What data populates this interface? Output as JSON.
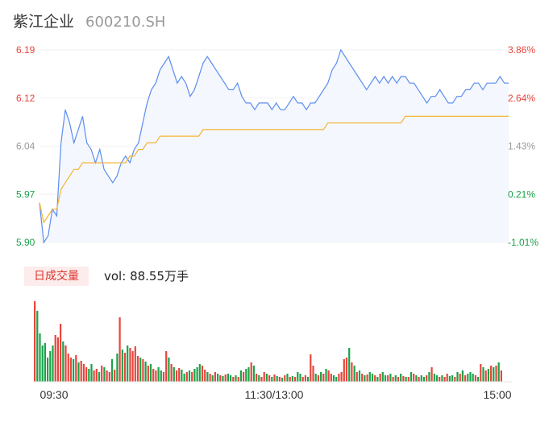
{
  "header": {
    "name": "紫江企业",
    "code": "600210.SH"
  },
  "volume_panel": {
    "label": "日成交量",
    "vol_prefix": "vol:",
    "vol_value": "88.55万手"
  },
  "colors": {
    "price_line": "#5b8def",
    "avg_line": "#f5b335",
    "area_fill": "#f4f7fd",
    "up": "#e8453c",
    "down": "#1aa34a",
    "axis_neutral": "#999999"
  },
  "chart_data": [
    {
      "type": "line",
      "title": "",
      "x_ticks": [
        "09:30",
        "11:30/13:00",
        "15:00"
      ],
      "y_ticks_left": [
        "6.19",
        "6.12",
        "6.04",
        "5.97",
        "5.90"
      ],
      "y_ticks_right": [
        "3.86%",
        "2.64%",
        "1.43%",
        "0.21%",
        "-1.01%"
      ],
      "ylim": [
        5.9,
        6.19
      ],
      "series": [
        {
          "values": [
            5.96,
            5.9,
            5.91,
            5.95,
            5.94,
            6.05,
            6.1,
            6.08,
            6.05,
            6.07,
            6.09,
            6.05,
            6.04,
            6.02,
            6.04,
            6.01,
            6.0,
            5.99,
            6.0,
            6.02,
            6.03,
            6.02,
            6.04,
            6.05,
            6.08,
            6.11,
            6.13,
            6.14,
            6.16,
            6.17,
            6.18,
            6.16,
            6.14,
            6.15,
            6.14,
            6.12,
            6.13,
            6.15,
            6.17,
            6.18,
            6.17,
            6.16,
            6.15,
            6.14,
            6.13,
            6.13,
            6.14,
            6.12,
            6.11,
            6.11,
            6.1,
            6.11,
            6.11,
            6.11,
            6.1,
            6.11,
            6.1,
            6.1,
            6.11,
            6.12,
            6.11,
            6.11,
            6.1,
            6.11,
            6.11,
            6.12,
            6.13,
            6.14,
            6.16,
            6.17,
            6.19,
            6.18,
            6.17,
            6.16,
            6.15,
            6.14,
            6.13,
            6.14,
            6.15,
            6.14,
            6.15,
            6.14,
            6.15,
            6.14,
            6.15,
            6.15,
            6.14,
            6.14,
            6.13,
            6.12,
            6.11,
            6.12,
            6.12,
            6.13,
            6.12,
            6.11,
            6.11,
            6.12,
            6.12,
            6.13,
            6.13,
            6.14,
            6.14,
            6.13,
            6.14,
            6.14,
            6.14,
            6.15,
            6.14,
            6.14
          ]
        },
        {
          "values": [
            5.96,
            5.93,
            5.94,
            5.95,
            5.95,
            5.98,
            5.99,
            6.0,
            6.01,
            6.01,
            6.02,
            6.02,
            6.02,
            6.02,
            6.02,
            6.02,
            6.02,
            6.02,
            6.02,
            6.02,
            6.02,
            6.03,
            6.03,
            6.04,
            6.04,
            6.05,
            6.05,
            6.05,
            6.06,
            6.06,
            6.06,
            6.06,
            6.06,
            6.06,
            6.06,
            6.06,
            6.06,
            6.06,
            6.07,
            6.07,
            6.07,
            6.07,
            6.07,
            6.07,
            6.07,
            6.07,
            6.07,
            6.07,
            6.07,
            6.07,
            6.07,
            6.07,
            6.07,
            6.07,
            6.07,
            6.07,
            6.07,
            6.07,
            6.07,
            6.07,
            6.07,
            6.07,
            6.07,
            6.07,
            6.07,
            6.07,
            6.07,
            6.08,
            6.08,
            6.08,
            6.08,
            6.08,
            6.08,
            6.08,
            6.08,
            6.08,
            6.08,
            6.08,
            6.08,
            6.08,
            6.08,
            6.08,
            6.08,
            6.08,
            6.08,
            6.09,
            6.09,
            6.09,
            6.09,
            6.09,
            6.09,
            6.09,
            6.09,
            6.09,
            6.09,
            6.09,
            6.09,
            6.09,
            6.09,
            6.09,
            6.09,
            6.09,
            6.09,
            6.09,
            6.09,
            6.09,
            6.09,
            6.09,
            6.09,
            6.09
          ]
        }
      ]
    },
    {
      "type": "bar",
      "title": "",
      "ylim": [
        0,
        100
      ],
      "values": [
        100,
        88,
        60,
        45,
        48,
        30,
        38,
        45,
        58,
        55,
        72,
        50,
        45,
        35,
        30,
        28,
        33,
        24,
        26,
        22,
        18,
        16,
        22,
        14,
        16,
        12,
        20,
        18,
        14,
        12,
        28,
        15,
        35,
        80,
        40,
        36,
        45,
        42,
        38,
        44,
        32,
        30,
        28,
        25,
        20,
        22,
        16,
        14,
        18,
        14,
        12,
        38,
        30,
        22,
        18,
        14,
        17,
        15,
        10,
        12,
        14,
        12,
        16,
        18,
        22,
        20,
        15,
        12,
        10,
        8,
        12,
        10,
        8,
        7,
        9,
        10,
        8,
        6,
        8,
        6,
        14,
        12,
        16,
        18,
        24,
        20,
        10,
        8,
        6,
        12,
        10,
        8,
        6,
        9,
        7,
        6,
        5,
        8,
        10,
        6,
        7,
        6,
        12,
        10,
        6,
        8,
        6,
        34,
        20,
        10,
        8,
        12,
        10,
        16,
        14,
        10,
        8,
        6,
        10,
        12,
        28,
        30,
        42,
        24,
        20,
        12,
        14,
        10,
        8,
        9,
        12,
        10,
        8,
        6,
        10,
        12,
        8,
        8,
        10,
        6,
        8,
        6,
        10,
        7,
        6,
        6,
        12,
        10,
        8,
        6,
        8,
        6,
        8,
        12,
        18,
        10,
        8,
        6,
        8,
        6,
        10,
        7,
        8,
        6,
        12,
        10,
        14,
        8,
        10,
        12,
        10,
        8,
        6,
        22,
        18,
        14,
        16,
        20,
        18,
        20,
        24,
        14
      ],
      "colors": [
        "up",
        "down",
        "down",
        "down",
        "down",
        "down",
        "down",
        "down",
        "up",
        "up",
        "up",
        "down",
        "up",
        "up",
        "up",
        "down",
        "up",
        "down",
        "up",
        "up",
        "up",
        "down",
        "down",
        "up",
        "up",
        "down",
        "up",
        "down",
        "up",
        "up",
        "down",
        "up",
        "down",
        "up",
        "down",
        "up",
        "down",
        "up",
        "up",
        "up",
        "up",
        "down",
        "up",
        "down",
        "up",
        "down",
        "up",
        "up",
        "down",
        "down",
        "up",
        "up",
        "down",
        "up",
        "down",
        "up",
        "up",
        "down",
        "down",
        "up",
        "down",
        "up",
        "down",
        "down",
        "down",
        "up",
        "up",
        "down",
        "up",
        "down",
        "up",
        "down",
        "up",
        "down",
        "up",
        "down",
        "down",
        "up",
        "down",
        "up",
        "down",
        "up",
        "down",
        "down",
        "up",
        "down",
        "up",
        "down",
        "up",
        "up",
        "down",
        "up",
        "down",
        "up",
        "down",
        "up",
        "down",
        "up",
        "down",
        "up",
        "down",
        "up",
        "down",
        "down",
        "up",
        "up",
        "down",
        "up",
        "up",
        "down",
        "up",
        "down",
        "up",
        "down",
        "up",
        "up",
        "down",
        "down",
        "up",
        "up",
        "up",
        "up",
        "down",
        "up",
        "down",
        "up",
        "down",
        "up",
        "down",
        "up",
        "down",
        "down",
        "up",
        "down",
        "up",
        "down",
        "down",
        "up",
        "down",
        "up",
        "down",
        "up",
        "down",
        "up",
        "down",
        "up",
        "down",
        "up",
        "down",
        "up",
        "down",
        "down",
        "up",
        "down",
        "up",
        "down",
        "down",
        "up",
        "down",
        "up",
        "up",
        "down",
        "down",
        "up",
        "down",
        "up",
        "down",
        "up",
        "down",
        "down",
        "down",
        "up",
        "down",
        "up",
        "down",
        "up",
        "down",
        "up",
        "down",
        "up",
        "down",
        "up"
      ]
    }
  ]
}
